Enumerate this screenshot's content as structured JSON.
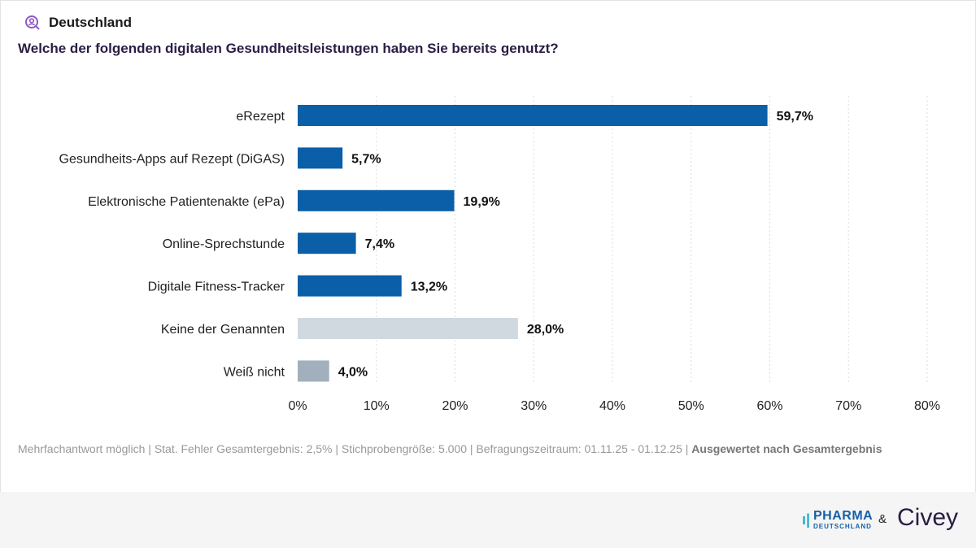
{
  "header": {
    "region": "Deutschland",
    "question": "Welche der folgenden digitalen Gesundheitsleistungen haben Sie bereits genutzt?"
  },
  "colors": {
    "primary": "#0a5fa8",
    "none": "#d1d9e0",
    "dontknow": "#a1b0bc",
    "title": "#2b1d45"
  },
  "chart_data": {
    "type": "bar",
    "orientation": "horizontal",
    "categories": [
      "eRezept",
      "Gesundheits-Apps auf Rezept (DiGAS)",
      "Elektronische Patientenakte (ePa)",
      "Online-Sprechstunde",
      "Digitale Fitness-Tracker",
      "Keine der Genannten",
      "Weiß nicht"
    ],
    "values": [
      59.7,
      5.7,
      19.9,
      7.4,
      13.2,
      28.0,
      4.0
    ],
    "value_labels": [
      "59,7%",
      "5,7%",
      "19,9%",
      "7,4%",
      "13,2%",
      "28,0%",
      "4,0%"
    ],
    "xlim": [
      0,
      80
    ],
    "ticks": [
      "0%",
      "10%",
      "20%",
      "30%",
      "40%",
      "50%",
      "60%",
      "70%",
      "80%"
    ],
    "grid": true
  },
  "note": {
    "text": "Mehrfachantwort möglich | Stat. Fehler Gesamtergebnis: 2,5% | Stichprobengröße: 5.000 | Befragungszeitraum: 01.11.25 - 01.12.25 | ",
    "bold": "Ausgewertet nach Gesamtergebnis"
  },
  "footer": {
    "logo1_top": "PHARMA",
    "logo1_bottom": "DEUTSCHLAND",
    "amp": "&",
    "logo2": "Civey"
  }
}
